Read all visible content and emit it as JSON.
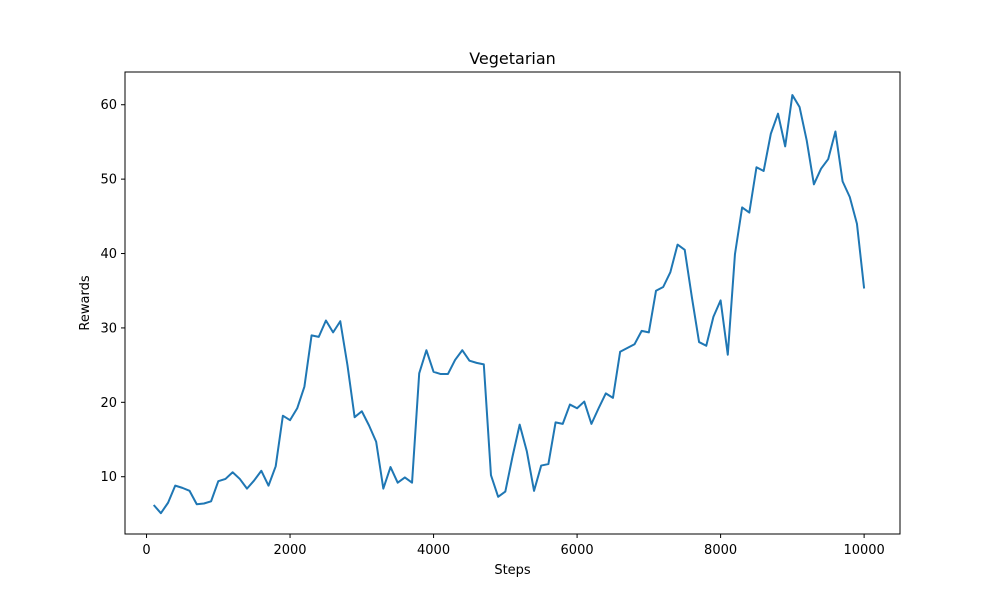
{
  "chart_data": {
    "type": "line",
    "title": "Vegetarian",
    "xlabel": "Steps",
    "ylabel": "Rewards",
    "xlim": [
      -300,
      10500
    ],
    "ylim": [
      2.3,
      64.4
    ],
    "xticks": [
      0,
      2000,
      4000,
      6000,
      8000,
      10000
    ],
    "yticks": [
      10,
      20,
      30,
      40,
      50,
      60
    ],
    "grid": false,
    "legend": "none",
    "series": [
      {
        "color": "#1f77b4",
        "x": [
          100,
          200,
          300,
          400,
          500,
          600,
          700,
          800,
          900,
          1000,
          1100,
          1200,
          1300,
          1400,
          1500,
          1600,
          1700,
          1800,
          1900,
          2000,
          2100,
          2200,
          2300,
          2400,
          2500,
          2600,
          2700,
          2800,
          2900,
          3000,
          3100,
          3200,
          3300,
          3400,
          3500,
          3600,
          3700,
          3800,
          3900,
          4000,
          4100,
          4200,
          4300,
          4400,
          4500,
          4600,
          4700,
          4800,
          4900,
          5000,
          5100,
          5200,
          5300,
          5400,
          5500,
          5600,
          5700,
          5800,
          5900,
          6000,
          6100,
          6200,
          6300,
          6400,
          6500,
          6600,
          6700,
          6800,
          6900,
          7000,
          7100,
          7200,
          7300,
          7400,
          7500,
          7600,
          7700,
          7800,
          7900,
          8000,
          8100,
          8200,
          8300,
          8400,
          8500,
          8600,
          8700,
          8800,
          8900,
          9000,
          9100,
          9200,
          9300,
          9400,
          9500,
          9600,
          9700,
          9800,
          9900,
          10000
        ],
        "y": [
          6.2,
          5.1,
          6.5,
          8.8,
          8.5,
          8.1,
          6.3,
          6.4,
          6.7,
          9.4,
          9.7,
          10.6,
          9.7,
          8.4,
          9.5,
          10.8,
          8.8,
          11.4,
          18.2,
          17.6,
          19.2,
          22.1,
          29.0,
          28.8,
          31.0,
          29.4,
          30.9,
          25.0,
          18.0,
          18.8,
          16.9,
          14.7,
          8.4,
          11.3,
          9.2,
          9.9,
          9.2,
          23.9,
          27.0,
          24.1,
          23.8,
          23.8,
          25.7,
          27.0,
          25.6,
          25.3,
          25.1,
          10.2,
          7.3,
          8.0,
          12.7,
          17.0,
          13.4,
          8.1,
          11.5,
          11.7,
          17.3,
          17.1,
          19.7,
          19.2,
          20.1,
          17.1,
          19.2,
          21.2,
          20.6,
          26.8,
          27.3,
          27.8,
          29.6,
          29.4,
          35.0,
          35.5,
          37.5,
          41.2,
          40.5,
          34.1,
          28.1,
          27.6,
          31.5,
          33.7,
          26.4,
          39.9,
          46.2,
          45.5,
          51.6,
          51.1,
          56.1,
          58.8,
          54.4,
          61.3,
          59.7,
          55.2,
          49.3,
          51.4,
          52.7,
          56.4,
          49.7,
          47.6,
          44.0,
          35.3
        ]
      }
    ]
  }
}
